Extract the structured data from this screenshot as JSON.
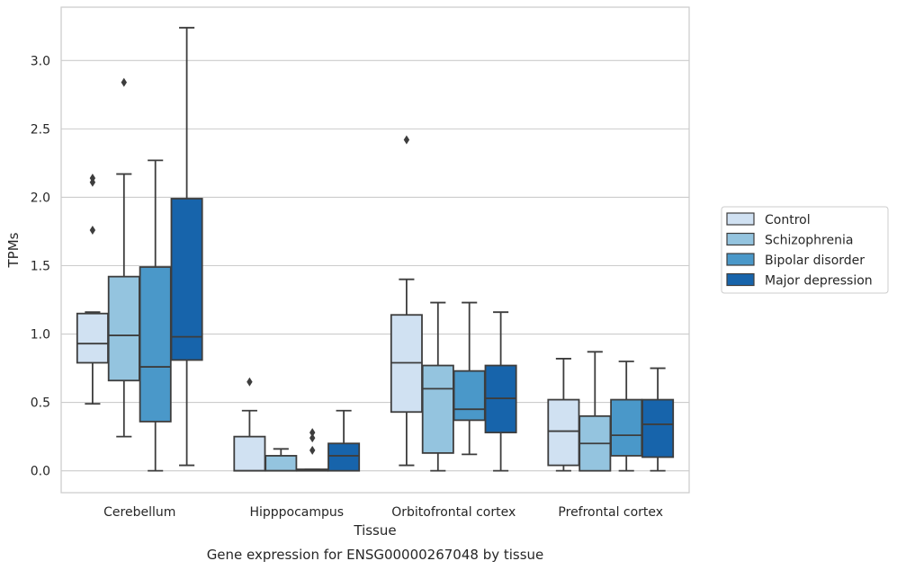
{
  "caption": "Gene expression for ENSG00000267048 by tissue",
  "chart_data": {
    "type": "box",
    "title": "",
    "xlabel": "Tissue",
    "ylabel": "TPMs",
    "ylim": [
      -0.16,
      3.39
    ],
    "yticks": [
      0.0,
      0.5,
      1.0,
      1.5,
      2.0,
      2.5,
      3.0
    ],
    "ytick_labels": [
      "0.0",
      "0.5",
      "1.0",
      "1.5",
      "2.0",
      "2.5",
      "3.0"
    ],
    "grid": "horizontal",
    "legend_position": "right",
    "categories": [
      "Cerebellum",
      "Hipppocampus",
      "Orbitofrontal cortex",
      "Prefrontal cortex"
    ],
    "series": [
      {
        "name": "Control",
        "color": "#d0e1f2",
        "boxes": [
          {
            "whislo": 0.49,
            "q1": 0.79,
            "med": 0.93,
            "q3": 1.15,
            "whishi": 1.16,
            "fliers": [
              1.76,
              2.11,
              2.14
            ]
          },
          {
            "whislo": 0.0,
            "q1": 0.0,
            "med": 0.0,
            "q3": 0.25,
            "whishi": 0.44,
            "fliers": [
              0.65
            ]
          },
          {
            "whislo": 0.04,
            "q1": 0.43,
            "med": 0.79,
            "q3": 1.14,
            "whishi": 1.4,
            "fliers": [
              2.42
            ]
          },
          {
            "whislo": 0.0,
            "q1": 0.04,
            "med": 0.29,
            "q3": 0.52,
            "whishi": 0.82,
            "fliers": []
          }
        ]
      },
      {
        "name": "Schizophrenia",
        "color": "#94c4df",
        "boxes": [
          {
            "whislo": 0.25,
            "q1": 0.66,
            "med": 0.99,
            "q3": 1.42,
            "whishi": 2.17,
            "fliers": [
              2.84
            ]
          },
          {
            "whislo": 0.0,
            "q1": 0.0,
            "med": 0.0,
            "q3": 0.11,
            "whishi": 0.16,
            "fliers": []
          },
          {
            "whislo": 0.0,
            "q1": 0.13,
            "med": 0.6,
            "q3": 0.77,
            "whishi": 1.23,
            "fliers": []
          },
          {
            "whislo": 0.0,
            "q1": 0.0,
            "med": 0.2,
            "q3": 0.4,
            "whishi": 0.87,
            "fliers": []
          }
        ]
      },
      {
        "name": "Bipolar disorder",
        "color": "#4a98c9",
        "boxes": [
          {
            "whislo": 0.0,
            "q1": 0.36,
            "med": 0.76,
            "q3": 1.49,
            "whishi": 2.27,
            "fliers": []
          },
          {
            "whislo": 0.0,
            "q1": 0.0,
            "med": 0.01,
            "q3": 0.01,
            "whishi": 0.01,
            "fliers": [
              0.15,
              0.24,
              0.28
            ]
          },
          {
            "whislo": 0.12,
            "q1": 0.37,
            "med": 0.45,
            "q3": 0.73,
            "whishi": 1.23,
            "fliers": []
          },
          {
            "whislo": 0.0,
            "q1": 0.11,
            "med": 0.26,
            "q3": 0.52,
            "whishi": 0.8,
            "fliers": []
          }
        ]
      },
      {
        "name": "Major depression",
        "color": "#1764ab",
        "boxes": [
          {
            "whislo": 0.04,
            "q1": 0.81,
            "med": 0.98,
            "q3": 1.99,
            "whishi": 3.24,
            "fliers": []
          },
          {
            "whislo": 0.0,
            "q1": 0.0,
            "med": 0.11,
            "q3": 0.2,
            "whishi": 0.44,
            "fliers": []
          },
          {
            "whislo": 0.0,
            "q1": 0.28,
            "med": 0.53,
            "q3": 0.77,
            "whishi": 1.16,
            "fliers": []
          },
          {
            "whislo": 0.0,
            "q1": 0.1,
            "med": 0.34,
            "q3": 0.52,
            "whishi": 0.75,
            "fliers": []
          }
        ]
      }
    ]
  }
}
